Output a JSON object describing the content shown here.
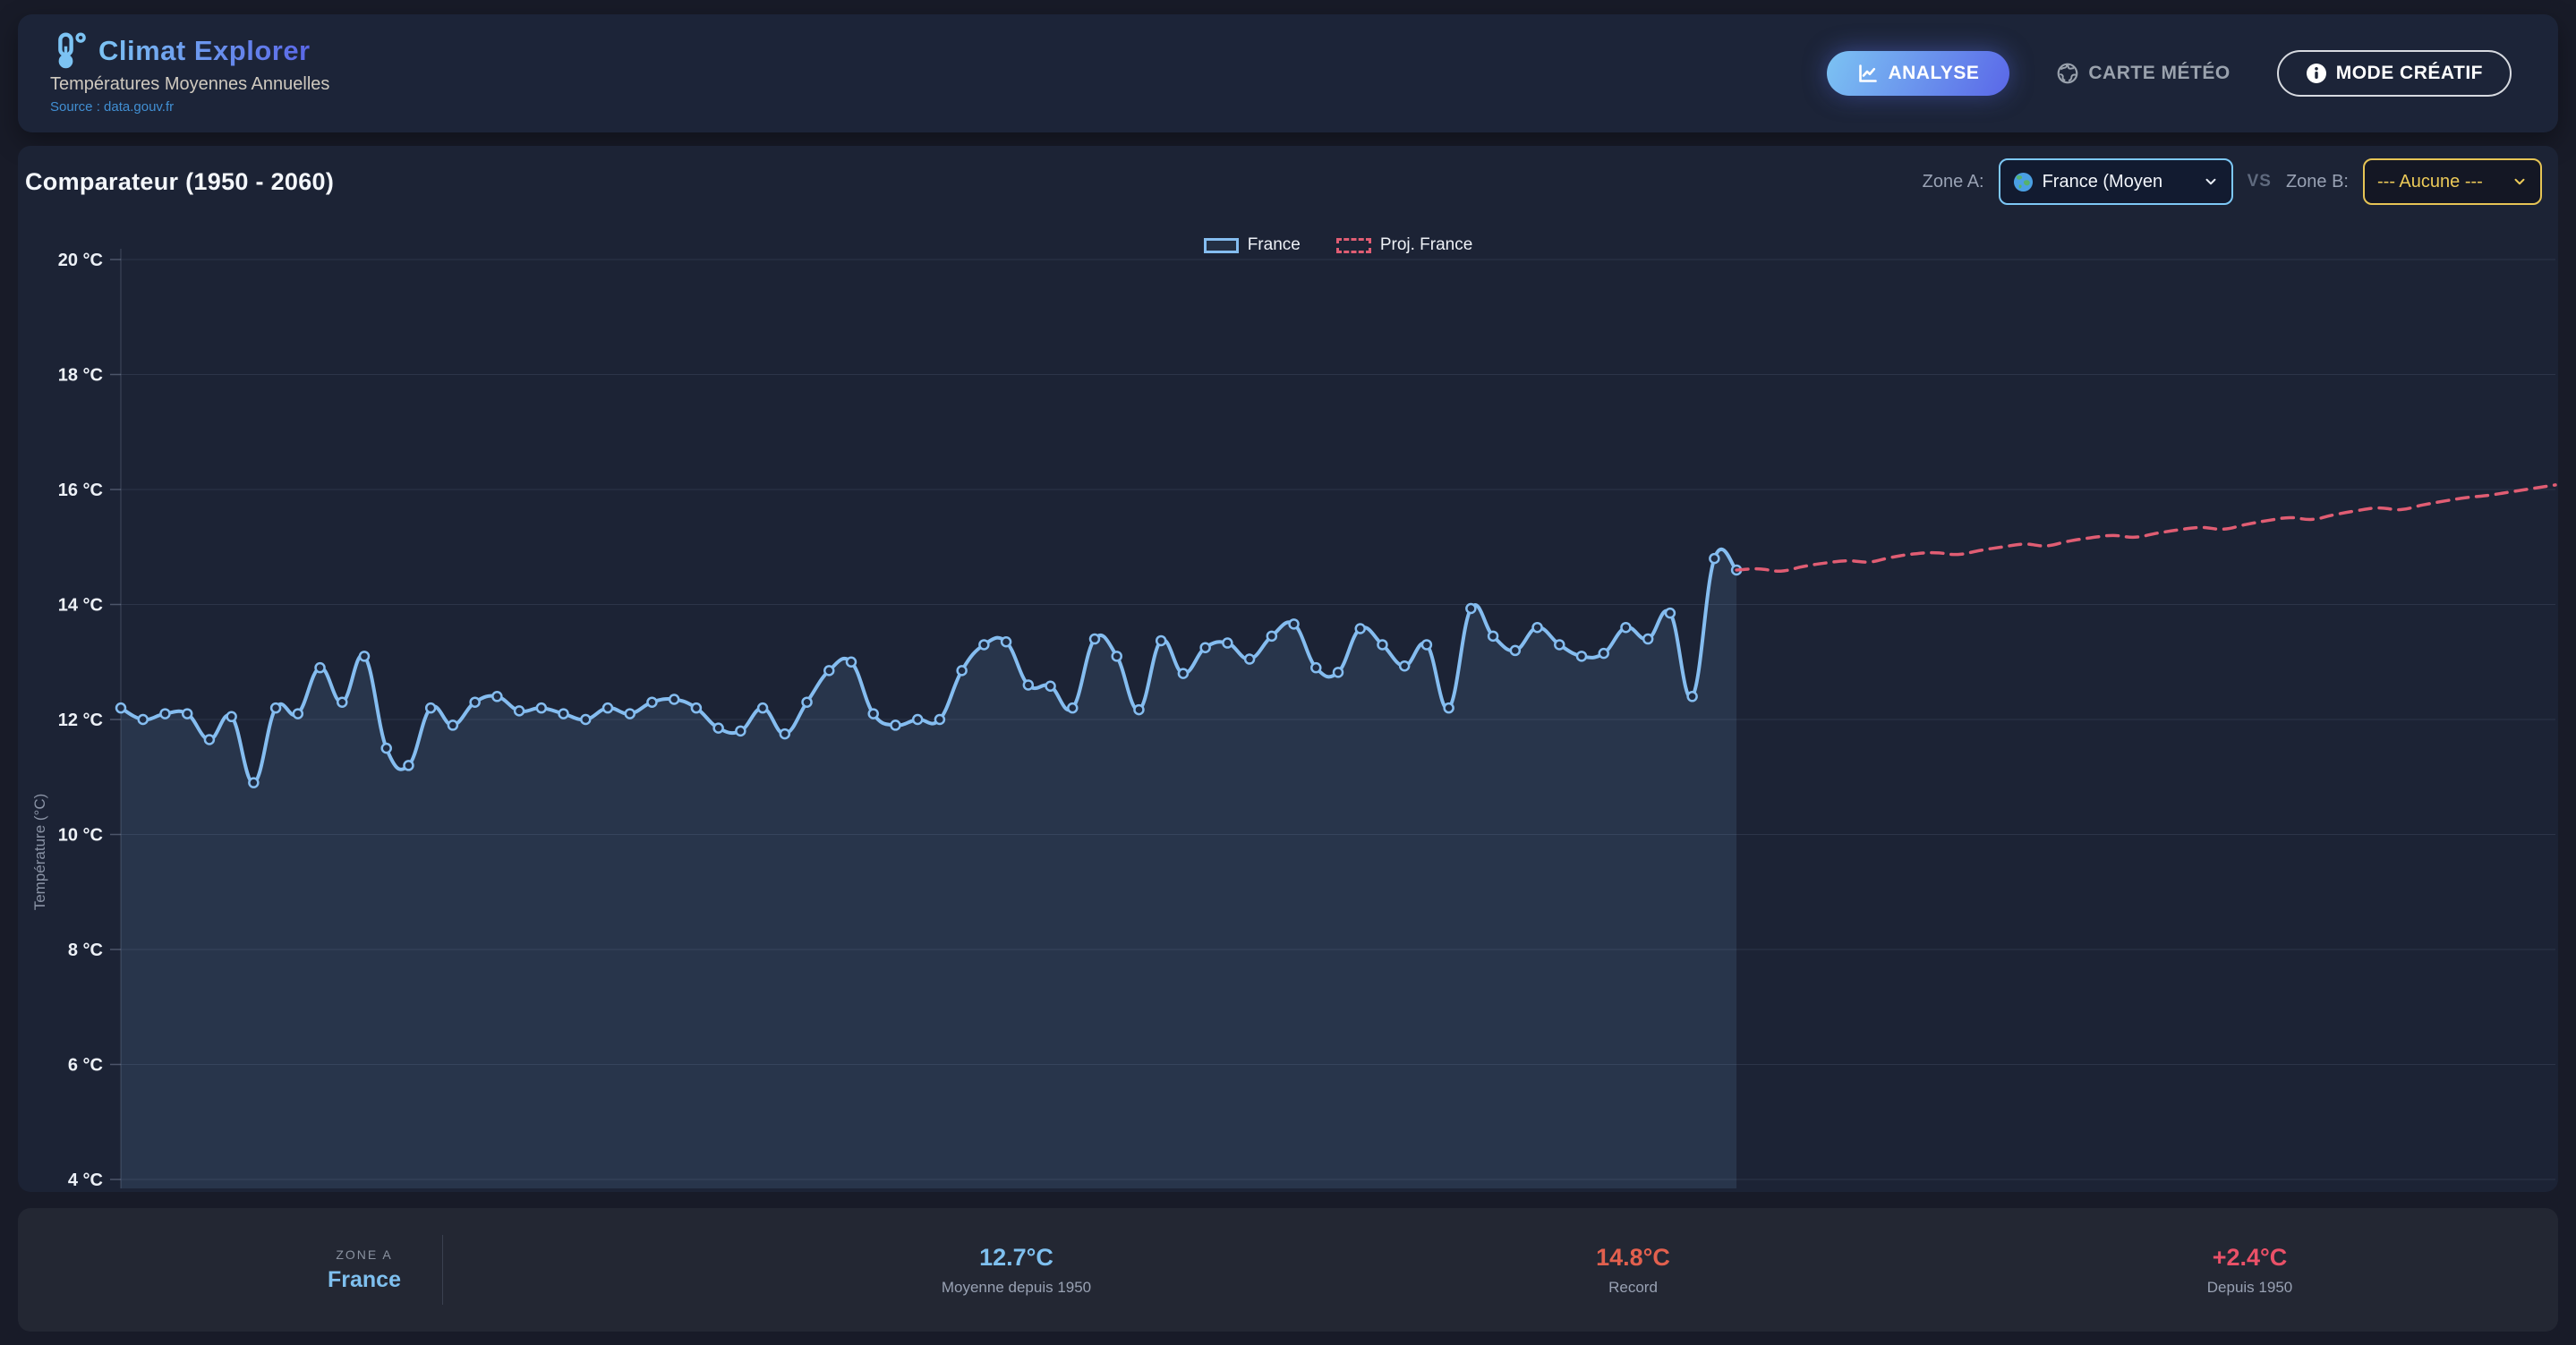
{
  "app": {
    "title": "Climat Explorer",
    "subtitle": "Températures Moyennes Annuelles",
    "source": "Source : data.gouv.fr"
  },
  "nav": {
    "analyse_label": "ANALYSE",
    "carte_label": "CARTE MÉTÉO",
    "mode_label": "MODE CRÉATIF"
  },
  "comparator": {
    "title": "Comparateur (1950 - 2060)",
    "zone_a_label": "Zone A:",
    "zone_a_value": "France (Moyen",
    "vs_label": "VS",
    "zone_b_label": "Zone B:",
    "zone_b_value": "--- Aucune ---"
  },
  "chart_data": {
    "type": "line",
    "title": "Comparateur (1950 - 2060)",
    "xlabel": "",
    "ylabel": "Température (°C)",
    "x_start": 1950,
    "x_end": 2060,
    "x_ticks_visible": false,
    "ylim": [
      4,
      20
    ],
    "ytick_step": 2,
    "ytick_suffix": " °C",
    "grid": true,
    "legend_position": "top-center",
    "series": [
      {
        "name": "France",
        "style": "solid",
        "color": "#85bdf0",
        "fill": true,
        "points": true,
        "x_first": 1950,
        "values": [
          12.2,
          12.0,
          12.1,
          12.1,
          11.65,
          12.05,
          10.9,
          12.2,
          12.1,
          12.9,
          12.3,
          13.1,
          11.5,
          11.2,
          12.2,
          11.9,
          12.3,
          12.4,
          12.15,
          12.2,
          12.1,
          12.0,
          12.2,
          12.1,
          12.3,
          12.35,
          12.2,
          11.85,
          11.8,
          12.2,
          11.75,
          12.3,
          12.85,
          13.0,
          12.1,
          11.9,
          12.0,
          12.0,
          12.85,
          13.3,
          13.35,
          12.6,
          12.58,
          12.2,
          13.4,
          13.1,
          12.17,
          13.37,
          12.8,
          13.25,
          13.33,
          13.05,
          13.45,
          13.66,
          12.9,
          12.82,
          13.58,
          13.3,
          12.93,
          13.3,
          12.2,
          13.93,
          13.45,
          13.2,
          13.6,
          13.3,
          13.1,
          13.15,
          13.6,
          13.4,
          13.85,
          12.4,
          14.8,
          14.6
        ]
      },
      {
        "name": "Proj. France",
        "style": "dashed",
        "color": "#e05d73",
        "fill": false,
        "points": false,
        "x_first": 2023,
        "values": [
          14.6,
          14.62,
          14.58,
          14.66,
          14.72,
          14.76,
          14.74,
          14.82,
          14.88,
          14.9,
          14.87,
          14.94,
          15.0,
          15.05,
          15.02,
          15.1,
          15.16,
          15.2,
          15.17,
          15.24,
          15.3,
          15.34,
          15.31,
          15.39,
          15.46,
          15.51,
          15.48,
          15.56,
          15.63,
          15.68,
          15.65,
          15.73,
          15.8,
          15.86,
          15.9,
          15.96,
          16.02,
          16.08
        ]
      }
    ]
  },
  "stats": {
    "zone_eyebrow": "ZONE A",
    "zone_value": "France",
    "items": [
      {
        "value": "12.7°C",
        "label": "Moyenne depuis 1950"
      },
      {
        "value": "14.8°C",
        "label": "Record"
      },
      {
        "value": "+2.4°C",
        "label": "Depuis 1950"
      }
    ]
  },
  "colors": {
    "accent_blue": "#7cc3f3",
    "accent_indigo": "#5a67e8",
    "line_blue": "#85bdf0",
    "proj_red": "#e05d73",
    "select_a_border": "#7dc8f6",
    "select_b_border": "#e6c455",
    "select_b_text": "#ecca58",
    "stat_avg": "#7fc0ef",
    "stat_record": "#e2604e",
    "stat_delta": "#ea5168",
    "zone_value": "#7fc0ef",
    "grid_line": "rgba(165,180,205,0.13)"
  }
}
